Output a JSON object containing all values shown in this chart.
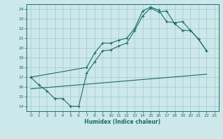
{
  "xlabel": "Humidex (Indice chaleur)",
  "bg_color": "#cde8ea",
  "grid_color": "#a8cdd0",
  "line_color": "#1a6b6b",
  "xlim": [
    -0.5,
    23.5
  ],
  "ylim": [
    13.5,
    24.5
  ],
  "xticks": [
    0,
    1,
    2,
    3,
    4,
    5,
    6,
    7,
    8,
    9,
    10,
    11,
    12,
    13,
    14,
    15,
    16,
    17,
    18,
    19,
    20,
    21,
    22,
    23
  ],
  "yticks": [
    14,
    15,
    16,
    17,
    18,
    19,
    20,
    21,
    22,
    23,
    24
  ],
  "line1_x": [
    0,
    1,
    2,
    3,
    4,
    5,
    6,
    7,
    8,
    9,
    10,
    11,
    12,
    13,
    14,
    15,
    16,
    17,
    18,
    19,
    20,
    21,
    22
  ],
  "line1_y": [
    17.0,
    16.2,
    15.6,
    14.8,
    14.8,
    14.0,
    14.0,
    17.4,
    18.6,
    19.7,
    19.8,
    20.2,
    20.5,
    21.8,
    23.3,
    24.1,
    23.7,
    23.8,
    22.5,
    21.8,
    21.8,
    20.9,
    19.7
  ],
  "line2_x": [
    0,
    7,
    8,
    9,
    10,
    11,
    12,
    13,
    14,
    15,
    16,
    17,
    18,
    19,
    20,
    21,
    22
  ],
  "line2_y": [
    17.0,
    18.0,
    19.5,
    20.5,
    20.5,
    20.8,
    21.0,
    22.0,
    23.8,
    24.2,
    23.9,
    22.7,
    22.6,
    22.7,
    21.8,
    20.9,
    19.7
  ],
  "line3_x": [
    0,
    22
  ],
  "line3_y": [
    15.8,
    17.3
  ]
}
